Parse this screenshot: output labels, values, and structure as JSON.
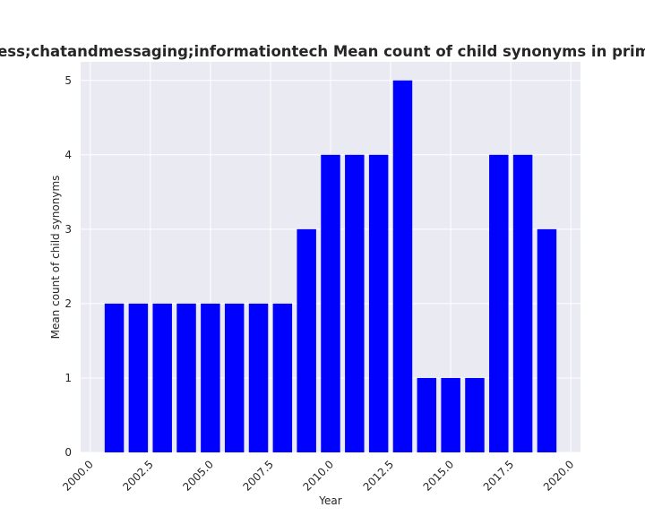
{
  "chart_data": {
    "type": "bar",
    "title": "Mean count of child synonyms in primary categories for software related to business;chatandmessaging;informationtech Mean count of child synonyms in primary categories for software related to business;chatandmessaging;informationtech",
    "xlabel": "Year",
    "ylabel": "Mean count of child synonyms",
    "x": [
      2001,
      2002,
      2003,
      2004,
      2005,
      2006,
      2007,
      2008,
      2009,
      2010,
      2011,
      2012,
      2013,
      2014,
      2015,
      2016,
      2017,
      2018,
      2019
    ],
    "values": [
      2,
      2,
      2,
      2,
      2,
      2,
      2,
      2,
      3,
      4,
      4,
      4,
      5,
      1,
      1,
      1,
      4,
      4,
      3
    ],
    "xlim": [
      1999.6,
      2020.4
    ],
    "ylim": [
      0,
      5.25
    ],
    "xticks": [
      2000.0,
      2002.5,
      2005.0,
      2007.5,
      2010.0,
      2012.5,
      2015.0,
      2017.5,
      2020.0
    ],
    "xtick_labels": [
      "2000.0",
      "2002.5",
      "2005.0",
      "2007.5",
      "2010.0",
      "2012.5",
      "2015.0",
      "2017.5",
      "2020.0"
    ],
    "yticks": [
      0,
      1,
      2,
      3,
      4,
      5
    ],
    "ytick_labels": [
      "0",
      "1",
      "2",
      "3",
      "4",
      "5"
    ],
    "bar_width": 0.8,
    "grid": true,
    "colors": {
      "bar": "#0000ff",
      "plot_background": "#eaeaf2",
      "grid": "#ffffff",
      "text": "#262626"
    }
  }
}
